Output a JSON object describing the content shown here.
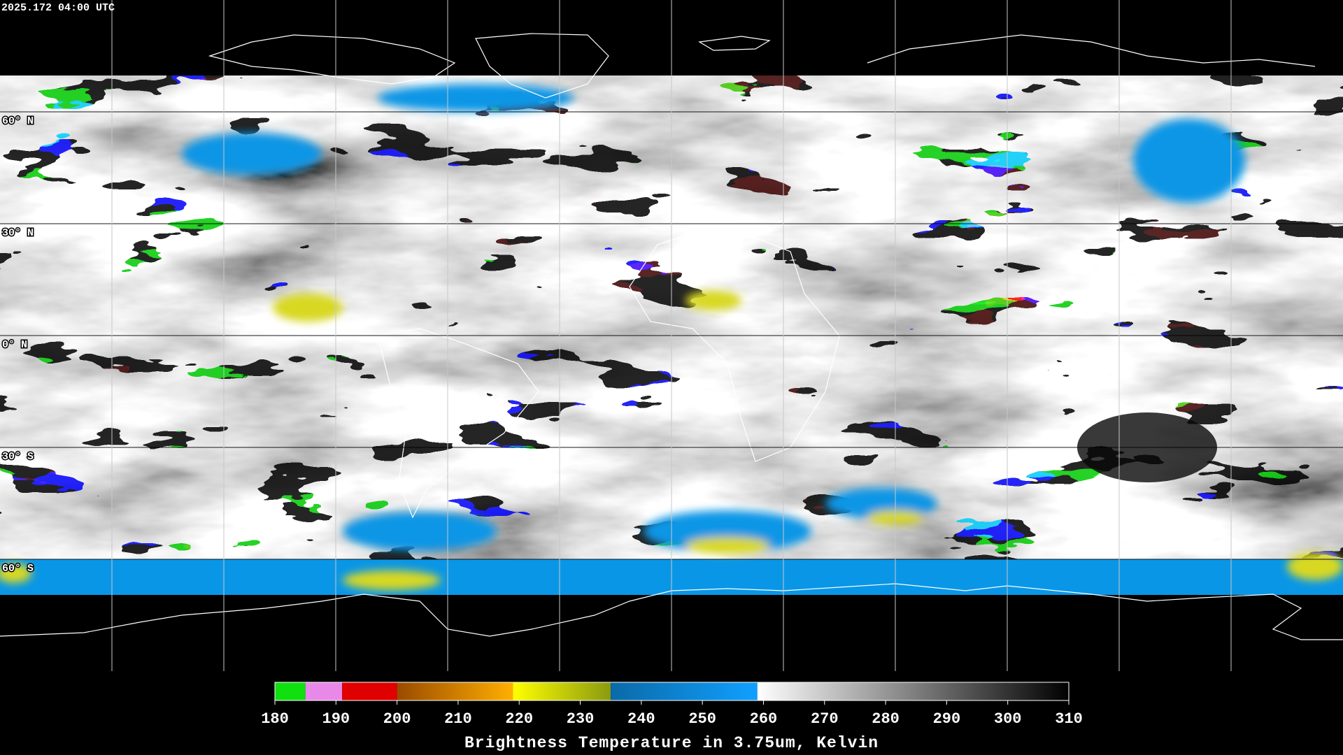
{
  "header": {
    "timestamp": "2025.172 04:00 UTC"
  },
  "map": {
    "latitude_labels": [
      "60° N",
      "30° N",
      "0° N",
      "30° S",
      "60° S"
    ]
  },
  "colorbar": {
    "title": "Brightness Temperature in 3.75um, Kelvin",
    "range": [
      180,
      310
    ],
    "ticks": [
      180,
      190,
      200,
      210,
      220,
      230,
      240,
      250,
      260,
      270,
      280,
      290,
      300,
      310
    ],
    "segments": [
      {
        "from": 180,
        "to": 185,
        "colors": [
          "#10e010",
          "#10e010"
        ]
      },
      {
        "from": 185,
        "to": 191,
        "colors": [
          "#e888e8",
          "#e888e8"
        ]
      },
      {
        "from": 191,
        "to": 200,
        "colors": [
          "#e00000",
          "#e00000"
        ]
      },
      {
        "from": 200,
        "to": 219,
        "colors": [
          "#9a4a00",
          "#ffb000"
        ]
      },
      {
        "from": 219,
        "to": 235,
        "colors": [
          "#ffff00",
          "#8a9a10"
        ]
      },
      {
        "from": 235,
        "to": 259,
        "colors": [
          "#0a6aa8",
          "#10a0ff"
        ]
      },
      {
        "from": 259,
        "to": 310,
        "colors": [
          "#ffffff",
          "#000000"
        ]
      }
    ]
  }
}
